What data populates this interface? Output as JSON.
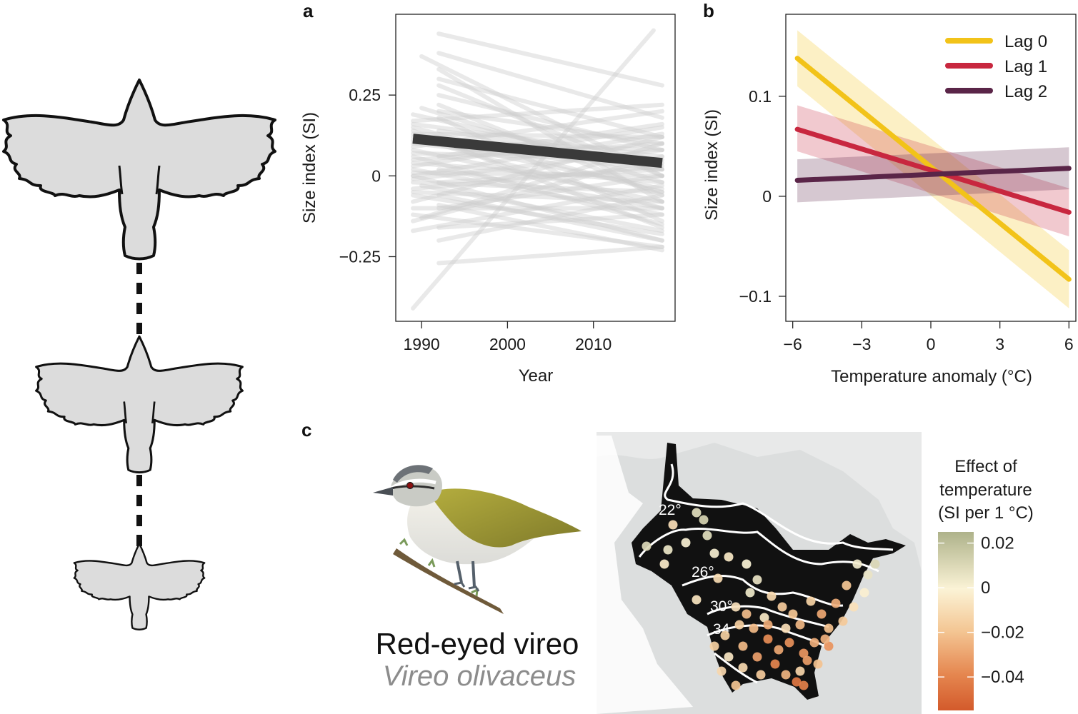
{
  "panels": {
    "a": "a",
    "b": "b",
    "c": "c"
  },
  "colors": {
    "lag0": "#f2c319",
    "lag1": "#c8273f",
    "lag2": "#5a2548",
    "background_lines": "#cfcfcf",
    "mean_line": "#3a3a3a",
    "map_land": "#111111",
    "map_outside": "#e8e9e9",
    "colorbar_top": "#aeb28a",
    "colorbar_mid": "#fbf3d6",
    "colorbar_bottom": "#d35a2b"
  },
  "icons": [
    "bird-silhouette-large-icon",
    "bird-silhouette-medium-icon",
    "bird-silhouette-small-icon",
    "red-eyed-vireo-illustration",
    "north-america-map"
  ],
  "chart_data": [
    {
      "id": "a",
      "type": "line",
      "xlabel": "Year",
      "ylabel": "Size index (SI)",
      "xlim": [
        1987,
        2019.5
      ],
      "ylim": [
        -0.45,
        0.5
      ],
      "x_ticks": [
        1990,
        2000,
        2010
      ],
      "x_tick_labels": [
        "1990",
        "2000",
        "2010"
      ],
      "y_ticks": [
        -0.25,
        0,
        0.25
      ],
      "y_tick_labels": [
        "−0.25",
        "0",
        "0.25"
      ],
      "mean_trend": {
        "x": [
          1989,
          2018
        ],
        "y": [
          0.115,
          0.04
        ]
      },
      "species_trends": [
        {
          "x": [
            1989,
            2018
          ],
          "y": [
            0.19,
            0.02
          ]
        },
        {
          "x": [
            1989,
            2018
          ],
          "y": [
            0.16,
            0.06
          ]
        },
        {
          "x": [
            1989,
            2018
          ],
          "y": [
            0.15,
            -0.05
          ]
        },
        {
          "x": [
            1989,
            2018
          ],
          "y": [
            0.13,
            0.12
          ]
        },
        {
          "x": [
            1989,
            2018
          ],
          "y": [
            0.12,
            -0.1
          ]
        },
        {
          "x": [
            1989,
            2018
          ],
          "y": [
            0.1,
            0.02
          ]
        },
        {
          "x": [
            1989,
            2018
          ],
          "y": [
            0.09,
            0.2
          ]
        },
        {
          "x": [
            1989,
            2018
          ],
          "y": [
            0.08,
            -0.08
          ]
        },
        {
          "x": [
            1989,
            2018
          ],
          "y": [
            0.07,
            0.05
          ]
        },
        {
          "x": [
            1989,
            2018
          ],
          "y": [
            0.06,
            -0.15
          ]
        },
        {
          "x": [
            1989,
            2018
          ],
          "y": [
            0.05,
            0.1
          ]
        },
        {
          "x": [
            1989,
            2018
          ],
          "y": [
            0.04,
            -0.02
          ]
        },
        {
          "x": [
            1989,
            2018
          ],
          "y": [
            0.03,
            0.15
          ]
        },
        {
          "x": [
            1989,
            2018
          ],
          "y": [
            0.02,
            -0.12
          ]
        },
        {
          "x": [
            1989,
            2018
          ],
          "y": [
            0.01,
            0.0
          ]
        },
        {
          "x": [
            1989,
            2018
          ],
          "y": [
            0.0,
            -0.2
          ]
        },
        {
          "x": [
            1989,
            2018
          ],
          "y": [
            -0.01,
            0.08
          ]
        },
        {
          "x": [
            1989,
            2018
          ],
          "y": [
            -0.02,
            -0.05
          ]
        },
        {
          "x": [
            1989,
            2018
          ],
          "y": [
            -0.04,
            0.03
          ]
        },
        {
          "x": [
            1989,
            2018
          ],
          "y": [
            -0.06,
            -0.18
          ]
        },
        {
          "x": [
            1989,
            2018
          ],
          "y": [
            -0.08,
            0.12
          ]
        },
        {
          "x": [
            1989,
            2018
          ],
          "y": [
            -0.1,
            -0.1
          ]
        },
        {
          "x": [
            1989,
            2018
          ],
          "y": [
            -0.12,
            -0.22
          ]
        },
        {
          "x": [
            1989,
            2018
          ],
          "y": [
            -0.14,
            0.06
          ]
        },
        {
          "x": [
            1989,
            2018
          ],
          "y": [
            -0.17,
            -0.03
          ]
        },
        {
          "x": [
            1989,
            2018
          ],
          "y": [
            0.17,
            0.22
          ]
        },
        {
          "x": [
            1989,
            2018
          ],
          "y": [
            0.14,
            -0.16
          ]
        },
        {
          "x": [
            1989,
            2018
          ],
          "y": [
            0.11,
            0.08
          ]
        },
        {
          "x": [
            1989,
            2018
          ],
          "y": [
            -0.05,
            -0.08
          ]
        },
        {
          "x": [
            1989,
            2018
          ],
          "y": [
            0.0,
            0.13
          ]
        },
        {
          "x": [
            1992,
            2018
          ],
          "y": [
            0.44,
            0.28
          ]
        },
        {
          "x": [
            1992,
            2018
          ],
          "y": [
            0.38,
            0.18
          ]
        },
        {
          "x": [
            1992,
            2018
          ],
          "y": [
            0.3,
            0.12
          ]
        },
        {
          "x": [
            1992,
            2018
          ],
          "y": [
            0.28,
            0.0
          ]
        },
        {
          "x": [
            1992,
            2018
          ],
          "y": [
            0.25,
            0.08
          ]
        },
        {
          "x": [
            1992,
            2018
          ],
          "y": [
            0.22,
            -0.06
          ]
        },
        {
          "x": [
            1992,
            2018
          ],
          "y": [
            0.2,
            0.1
          ]
        },
        {
          "x": [
            1992,
            2018
          ],
          "y": [
            0.18,
            -0.14
          ]
        },
        {
          "x": [
            1992,
            2018
          ],
          "y": [
            0.14,
            0.04
          ]
        },
        {
          "x": [
            1992,
            2018
          ],
          "y": [
            0.1,
            -0.04
          ]
        },
        {
          "x": [
            1992,
            2018
          ],
          "y": [
            0.06,
            0.16
          ]
        },
        {
          "x": [
            1992,
            2018
          ],
          "y": [
            0.02,
            -0.1
          ]
        },
        {
          "x": [
            1992,
            2018
          ],
          "y": [
            -0.02,
            0.02
          ]
        },
        {
          "x": [
            1992,
            2018
          ],
          "y": [
            -0.06,
            -0.2
          ]
        },
        {
          "x": [
            1992,
            2018
          ],
          "y": [
            -0.1,
            0.0
          ]
        },
        {
          "x": [
            1992,
            2018
          ],
          "y": [
            -0.16,
            -0.12
          ]
        },
        {
          "x": [
            1992,
            2018
          ],
          "y": [
            -0.2,
            -0.06
          ]
        },
        {
          "x": [
            1992,
            2018
          ],
          "y": [
            -0.27,
            -0.22
          ]
        },
        {
          "x": [
            1992,
            2018
          ],
          "y": [
            -0.09,
            -0.23
          ]
        },
        {
          "x": [
            1992,
            2018
          ],
          "y": [
            0.33,
            -0.08
          ]
        },
        {
          "x": [
            1990,
            2018
          ],
          "y": [
            0.37,
            0.0
          ]
        },
        {
          "x": [
            1990,
            2018
          ],
          "y": [
            -0.03,
            -0.17
          ]
        },
        {
          "x": [
            1990,
            2018
          ],
          "y": [
            0.21,
            -0.02
          ]
        },
        {
          "x": [
            1990,
            2018
          ],
          "y": [
            -0.13,
            0.1
          ]
        },
        {
          "x": [
            1989,
            2017
          ],
          "y": [
            -0.41,
            0.45
          ]
        }
      ]
    },
    {
      "id": "b",
      "type": "line",
      "xlabel": "Temperature anomaly (°C)",
      "ylabel": "Size index (SI)",
      "xlim": [
        -6.3,
        6.3
      ],
      "ylim": [
        -0.125,
        0.182
      ],
      "x_ticks": [
        -6,
        -3,
        0,
        3,
        6
      ],
      "x_tick_labels": [
        "−6",
        "−3",
        "0",
        "3",
        "6"
      ],
      "y_ticks": [
        -0.1,
        0,
        0.1
      ],
      "y_tick_labels": [
        "−0.1",
        "0",
        "0.1"
      ],
      "legend_position": "top-right",
      "series": [
        {
          "name": "Lag 0",
          "x": [
            -5.8,
            6
          ],
          "y": [
            0.138,
            -0.083
          ],
          "lower": [
            0.11,
            -0.112
          ],
          "upper": [
            0.166,
            -0.054
          ]
        },
        {
          "name": "Lag 1",
          "x": [
            -5.8,
            6
          ],
          "y": [
            0.067,
            -0.016
          ],
          "lower": [
            0.045,
            -0.04
          ],
          "upper": [
            0.091,
            0.008
          ]
        },
        {
          "name": "Lag 2",
          "x": [
            -5.8,
            6
          ],
          "y": [
            0.016,
            0.028
          ],
          "lower": [
            -0.006,
            0.007
          ],
          "upper": [
            0.037,
            0.049
          ]
        }
      ]
    },
    {
      "id": "c-colorbar",
      "type": "heatmap",
      "title_lines": [
        "Effect of",
        "temperature",
        "(SI per 1 °C)"
      ],
      "range": [
        -0.055,
        0.025
      ],
      "ticks": [
        0.02,
        0,
        -0.02,
        -0.04
      ],
      "tick_labels": [
        "0.02",
        "0",
        "−0.02",
        "−0.04"
      ]
    }
  ],
  "species": {
    "common_name": "Red-eyed vireo",
    "scientific_name": "Vireo olivaceus"
  },
  "map": {
    "isotherm_labels": [
      "22°",
      "26°",
      "30°",
      "34"
    ],
    "site_effects": [
      0.01,
      0.005,
      -0.01,
      0.008,
      0.012,
      0.002,
      -0.005,
      0.0,
      0.006,
      -0.012,
      -0.018,
      -0.02,
      -0.025,
      -0.015,
      -0.03,
      -0.022,
      -0.028,
      -0.035,
      -0.01,
      -0.005,
      0.004,
      -0.008,
      -0.016,
      -0.024,
      -0.032,
      -0.04,
      -0.026,
      -0.018,
      -0.012,
      -0.006,
      0.003,
      -0.02,
      -0.028,
      -0.036,
      -0.022,
      -0.014,
      -0.03,
      -0.038,
      -0.024,
      -0.017,
      0.006,
      0.011,
      -0.002,
      -0.009,
      -0.019,
      -0.027,
      -0.033,
      -0.045,
      -0.021,
      -0.013,
      0.008,
      0.001,
      -0.004,
      -0.011,
      -0.023,
      -0.029,
      -0.037,
      -0.042,
      -0.016,
      -0.007
    ]
  }
}
